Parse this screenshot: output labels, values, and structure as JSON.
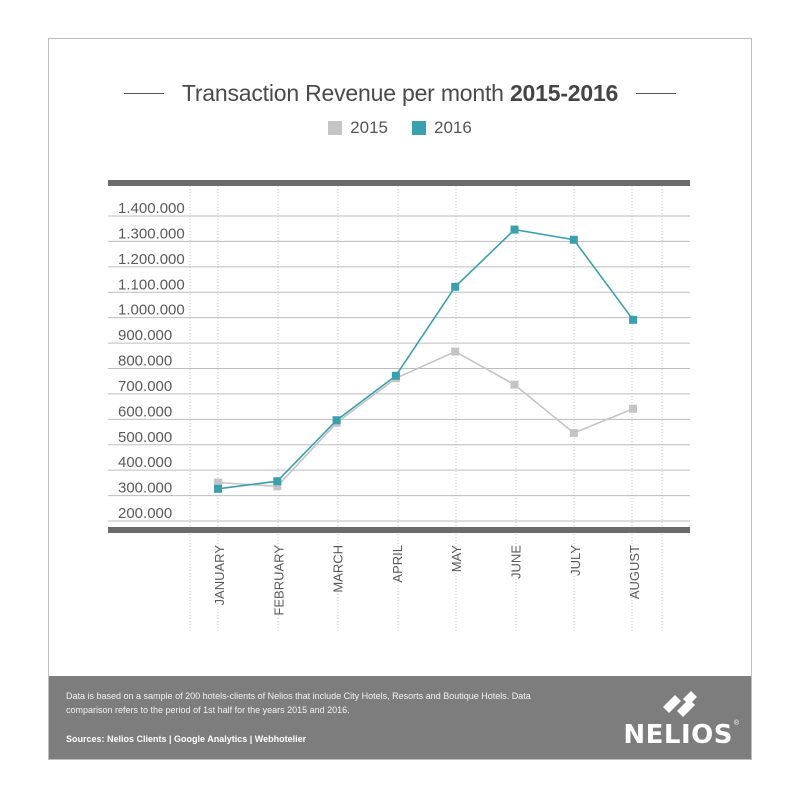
{
  "title": {
    "prefix": "Transaction Revenue per month",
    "bold": "2015-2016"
  },
  "colors": {
    "s2015": "#c4c4c4",
    "s2016": "#3aa0ad",
    "axis": "#6b6b6b",
    "grid": "#bdbdbd",
    "footer": "#7d7d7d"
  },
  "chart_data": {
    "type": "line",
    "title": "Transaction Revenue per month 2015-2016",
    "categories": [
      "JANUARY",
      "FEBRUARY",
      "MARCH",
      "APRIL",
      "MAY",
      "JUNE",
      "JULY",
      "AUGUST"
    ],
    "series": [
      {
        "name": "2015",
        "color": "#c4c4c4",
        "values": [
          320000,
          305000,
          555000,
          730000,
          835000,
          705000,
          515000,
          610000
        ]
      },
      {
        "name": "2016",
        "color": "#3aa0ad",
        "values": [
          295000,
          325000,
          565000,
          740000,
          1090000,
          1315000,
          1275000,
          960000
        ]
      }
    ],
    "yticks": [
      "200.000",
      "300.000",
      "400.000",
      "500.000",
      "600.000",
      "700.000",
      "800.000",
      "900.000",
      "1.000.000",
      "1.100.000",
      "1.200.000",
      "1.300.000",
      "1.400.000"
    ],
    "ylim": [
      200000,
      1400000
    ],
    "grid": true,
    "legend": "top-center",
    "xlabel": "",
    "ylabel": ""
  },
  "footer": {
    "note": "Data is based on a sample of 200 hotels-clients of Nelios that include City Hotels, Resorts and Boutique Hotels. Data comparison refers to the period of 1st half for the years 2015 and 2016.",
    "sources": "Sources: Nelios Clients | Google Analytics | Webhotelier",
    "logo_text": "NELIOS",
    "logo_mark": "®"
  }
}
